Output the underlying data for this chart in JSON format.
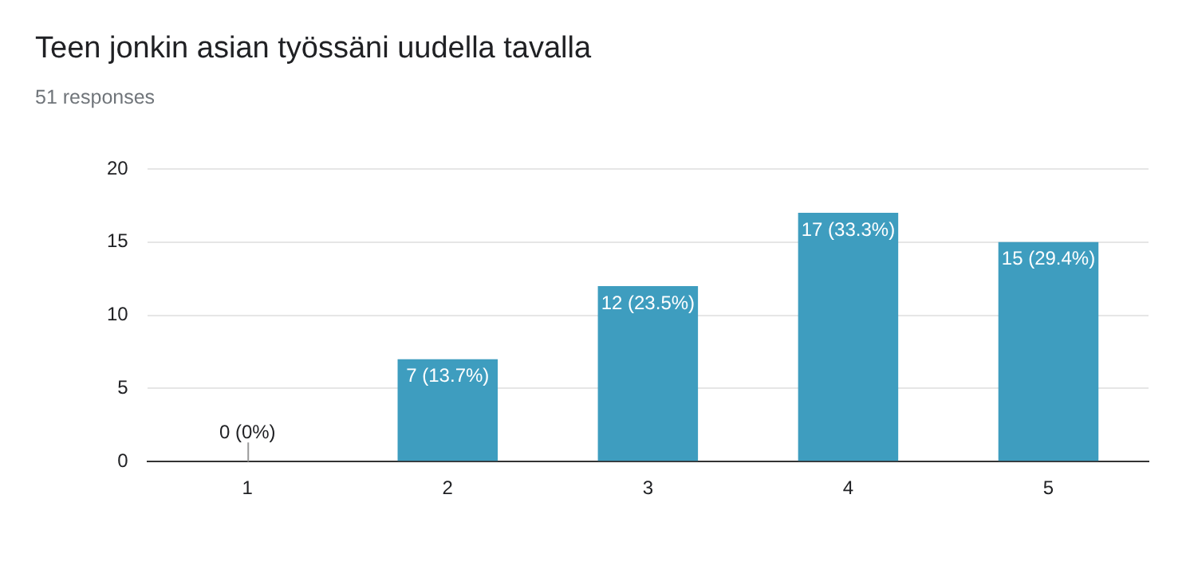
{
  "chart_data": {
    "type": "bar",
    "title": "Teen jonkin asian työssäni uudella tavalla",
    "subtitle": "51 responses",
    "categories": [
      "1",
      "2",
      "3",
      "4",
      "5"
    ],
    "values": [
      0,
      7,
      12,
      17,
      15
    ],
    "value_labels": [
      "0 (0%)",
      "7 (13.7%)",
      "12 (23.5%)",
      "17 (33.3%)",
      "15 (29.4%)"
    ],
    "color": "#3e9dbf",
    "ylim": [
      0,
      20
    ],
    "yticks": [
      0,
      5,
      10,
      15,
      20
    ],
    "grid": "y",
    "legend": false
  }
}
